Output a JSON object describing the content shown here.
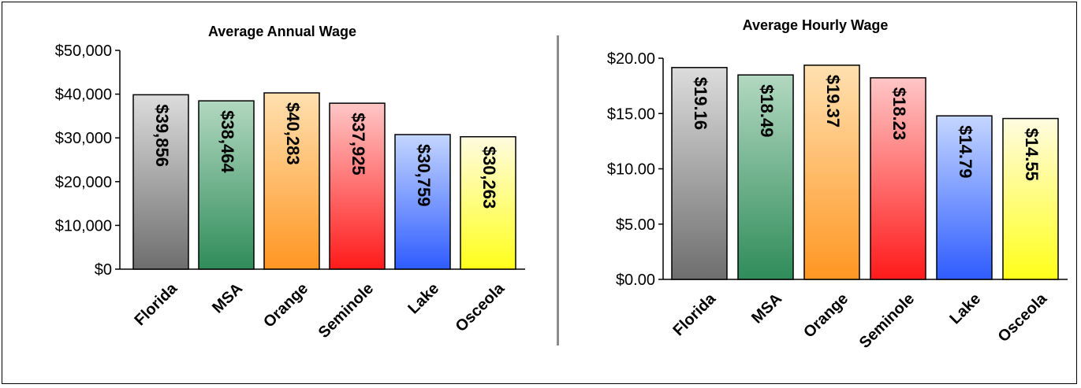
{
  "chart_data": [
    {
      "type": "bar",
      "title": "Average Annual Wage",
      "categories": [
        "Florida",
        "MSA",
        "Orange",
        "Seminole",
        "Lake",
        "Osceola"
      ],
      "values": [
        39856,
        38464,
        40283,
        37925,
        30759,
        30263
      ],
      "data_labels": [
        "$39,856",
        "$38,464",
        "$40,283",
        "$37,925",
        "$30,759",
        "$30,263"
      ],
      "y_ticks": [
        "$0",
        "$10,000",
        "$20,000",
        "$30,000",
        "$40,000",
        "$50,000"
      ],
      "ylim": [
        0,
        50000
      ],
      "xlabel": "",
      "ylabel": "",
      "grid": false
    },
    {
      "type": "bar",
      "title": "Average Hourly Wage",
      "categories": [
        "Florida",
        "MSA",
        "Orange",
        "Seminole",
        "Lake",
        "Osceola"
      ],
      "values": [
        19.16,
        18.49,
        19.37,
        18.23,
        14.79,
        14.55
      ],
      "data_labels": [
        "$19.16",
        "$18.49",
        "$19.37",
        "$18.23",
        "$14.79",
        "$14.55"
      ],
      "y_ticks": [
        "$0.00",
        "$5.00",
        "$10.00",
        "$15.00",
        "$20.00"
      ],
      "ylim": [
        0,
        20
      ],
      "xlabel": "",
      "ylabel": "",
      "grid": false
    }
  ],
  "bar_colors": [
    {
      "top": "#dcdcdc",
      "bottom": "#6e6e6e"
    },
    {
      "top": "#b2d8c0",
      "bottom": "#2f8c5a"
    },
    {
      "top": "#ffe0b0",
      "bottom": "#ff9622"
    },
    {
      "top": "#ffc6c6",
      "bottom": "#ff1a1a"
    },
    {
      "top": "#c4d6ff",
      "bottom": "#2f5cff"
    },
    {
      "top": "#fffbe0",
      "bottom": "#ffff1a"
    }
  ]
}
